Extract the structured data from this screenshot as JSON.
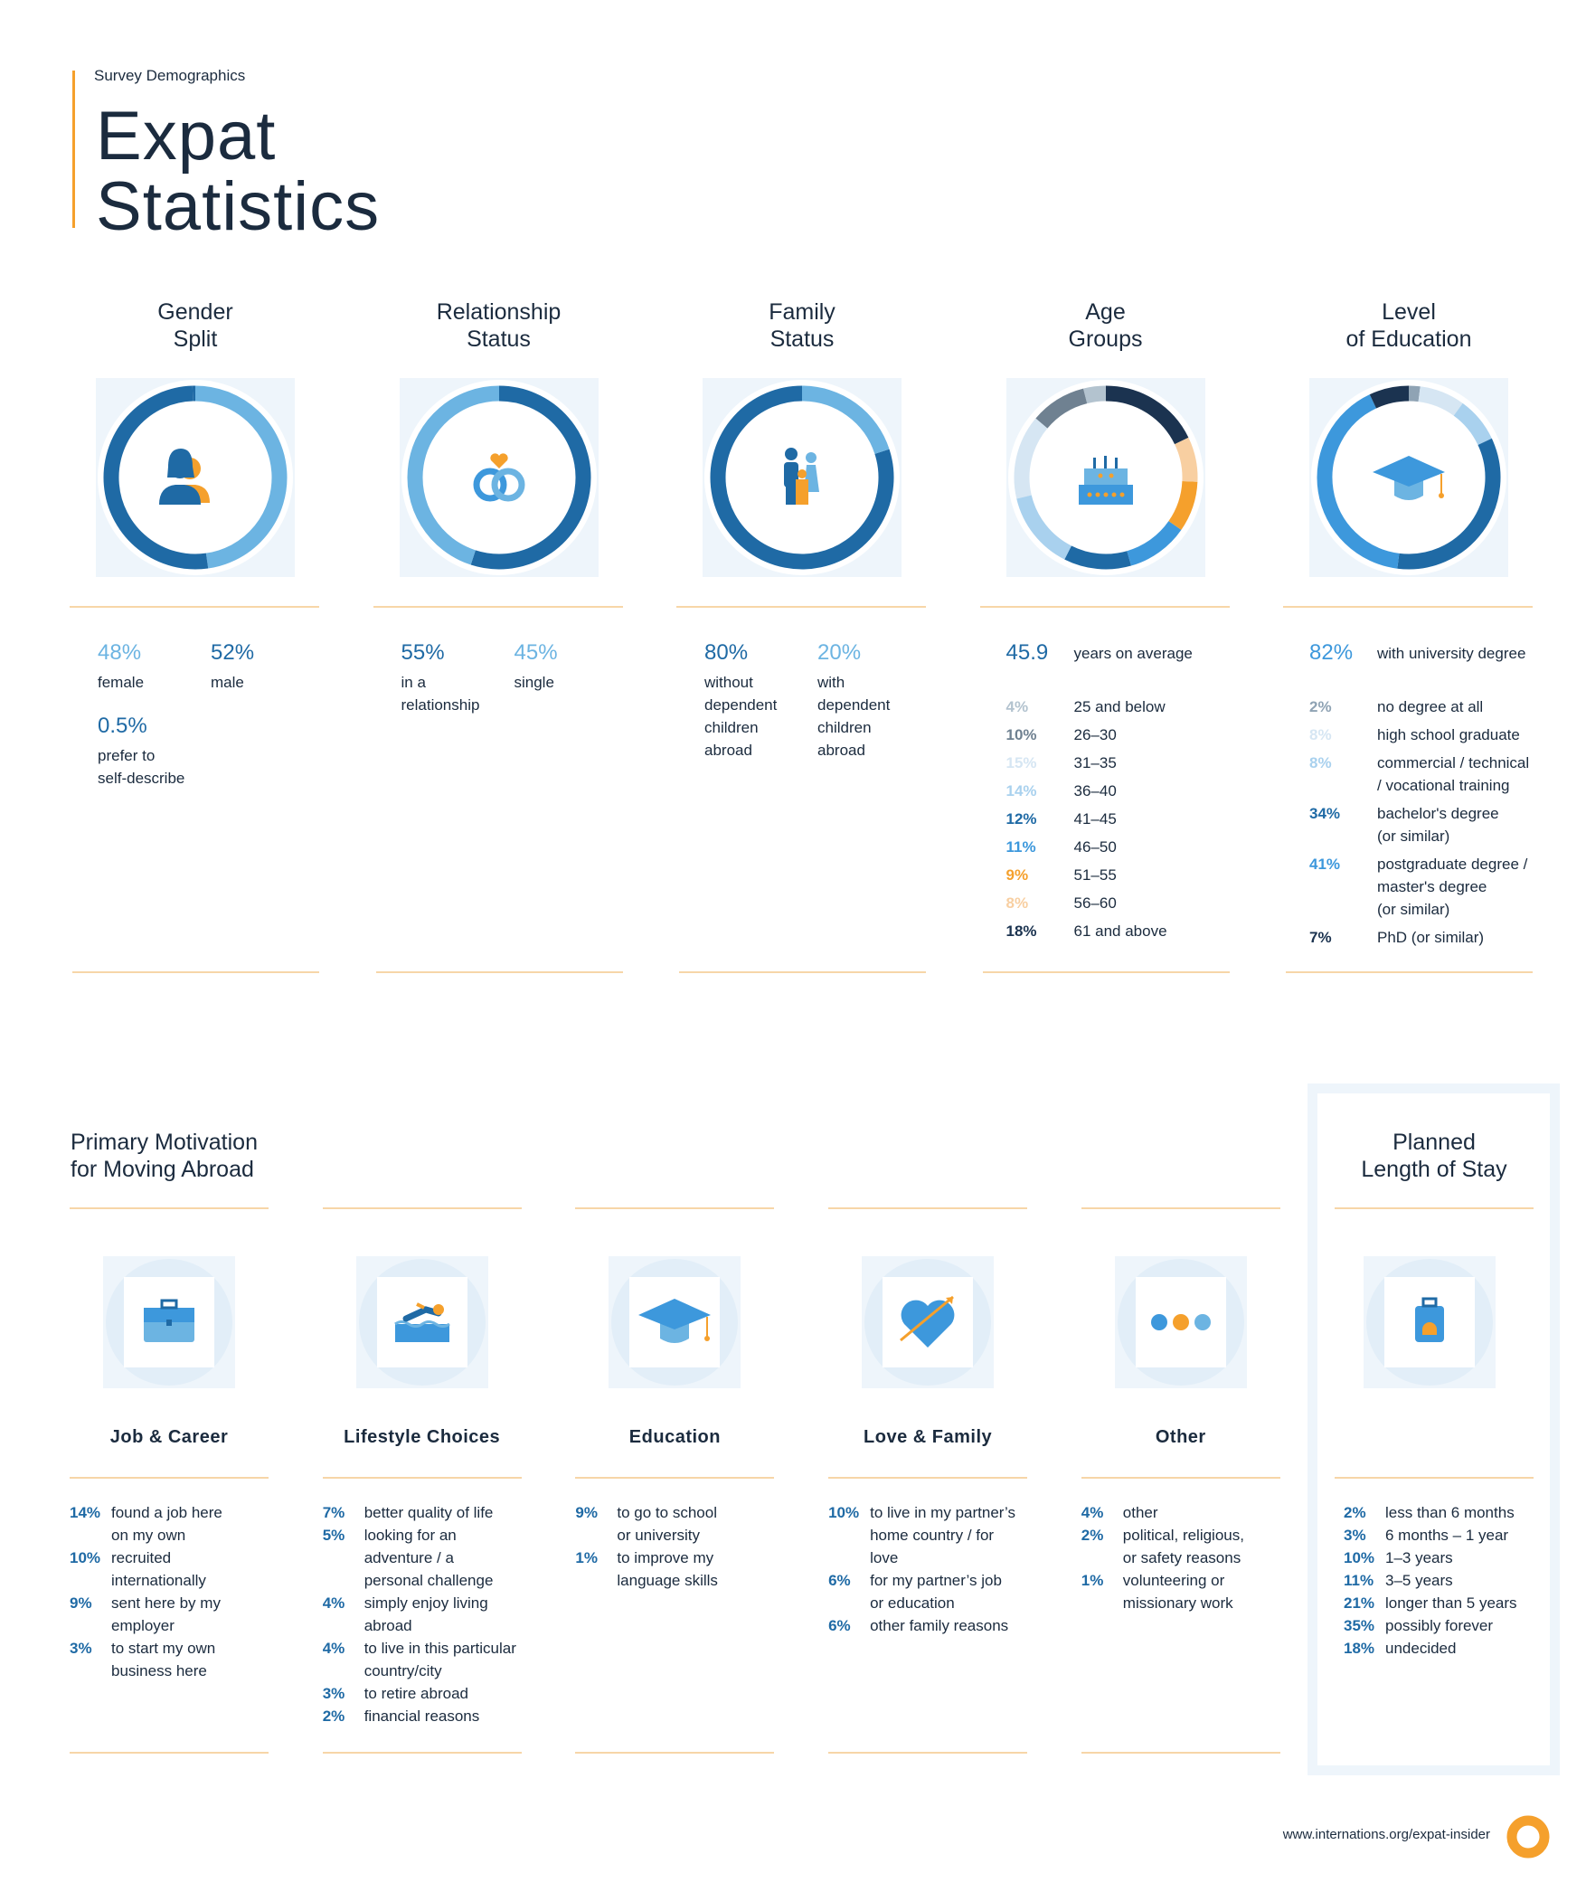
{
  "header": {
    "kicker": "Survey Demographics",
    "title": "Expat\nStatistics"
  },
  "demographics": [
    {
      "type": "donut",
      "title": "Gender\nSplit",
      "clockwise": true,
      "items": [
        {
          "value": 48,
          "value_label": "48%",
          "label": "female",
          "color": "#6cb4e2"
        },
        {
          "value": 52,
          "value_label": "52%",
          "label": "male",
          "color": "#1f6aa5"
        },
        {
          "value": 0.5,
          "value_label": "0.5%",
          "label": "prefer to\nself-describe",
          "color": "#1f6aa5"
        }
      ]
    },
    {
      "type": "donut",
      "title": "Relationship\nStatus",
      "clockwise": true,
      "items": [
        {
          "value": 55,
          "value_label": "55%",
          "label": "in a\nrelationship",
          "color": "#1f6aa5"
        },
        {
          "value": 45,
          "value_label": "45%",
          "label": "single",
          "color": "#6cb4e2"
        }
      ]
    },
    {
      "type": "donut",
      "title": "Family\nStatus",
      "clockwise": false,
      "items": [
        {
          "value": 80,
          "value_label": "80%",
          "label": "without\ndependent\nchildren\nabroad",
          "color": "#1f6aa5"
        },
        {
          "value": 20,
          "value_label": "20%",
          "label": "with\ndependent\nchildren\nabroad",
          "color": "#6cb4e2"
        }
      ]
    },
    {
      "type": "donut",
      "title": "Age\nGroups",
      "clockwise": false,
      "summary": {
        "value": 45.9,
        "label": "years on average",
        "color": "#1f6aa5"
      },
      "items": [
        {
          "value": 4,
          "value_label": "4%",
          "label": "25 and below",
          "color": "#b3c3cf"
        },
        {
          "value": 10,
          "value_label": "10%",
          "label": "26–30",
          "color": "#6f8191"
        },
        {
          "value": 15,
          "value_label": "15%",
          "label": "31–35",
          "color": "#d6e6f3"
        },
        {
          "value": 14,
          "value_label": "14%",
          "label": "36–40",
          "color": "#a9d1ee"
        },
        {
          "value": 12,
          "value_label": "12%",
          "label": "41–45",
          "color": "#1f6aa5"
        },
        {
          "value": 11,
          "value_label": "11%",
          "label": "46–50",
          "color": "#3d98dc"
        },
        {
          "value": 9,
          "value_label": "9%",
          "label": "51–55",
          "color": "#f5a02c"
        },
        {
          "value": 8,
          "value_label": "8%",
          "label": "56–60",
          "color": "#f8cfa1"
        },
        {
          "value": 18,
          "value_label": "18%",
          "label": "61 and above",
          "color": "#1b3350"
        }
      ]
    },
    {
      "type": "donut",
      "title": "Level\nof Education",
      "clockwise": true,
      "summary": {
        "value": 82,
        "value_label": "82%",
        "label": "with university degree",
        "color": "#3d98dc"
      },
      "items": [
        {
          "value": 2,
          "value_label": "2%",
          "label": "no degree at all",
          "color": "#8fa3b4"
        },
        {
          "value": 8,
          "value_label": "8%",
          "label": "high school graduate",
          "color": "#d6e6f3"
        },
        {
          "value": 8,
          "value_label": "8%",
          "label": "commercial / technical\n/ vocational training",
          "color": "#a9d1ee"
        },
        {
          "value": 34,
          "value_label": "34%",
          "label": "bachelor's degree\n(or similar)",
          "color": "#1f6aa5"
        },
        {
          "value": 41,
          "value_label": "41%",
          "label": "postgraduate degree /\nmaster's degree\n(or similar)",
          "color": "#3d98dc"
        },
        {
          "value": 7,
          "value_label": "7%",
          "label": "PhD (or similar)",
          "color": "#1b3350"
        }
      ]
    }
  ],
  "motivation": {
    "title": "Primary Motivation\nfor Moving Abroad",
    "groups": [
      {
        "title": "Job & Career",
        "items": [
          {
            "value": "14%",
            "label": "found a job here\non my own"
          },
          {
            "value": "10%",
            "label": "recruited\ninternationally"
          },
          {
            "value": "9%",
            "label": "sent here by my\nemployer"
          },
          {
            "value": "3%",
            "label": "to start my own\nbusiness here"
          }
        ]
      },
      {
        "title": "Lifestyle Choices",
        "items": [
          {
            "value": "7%",
            "label": "better quality of life"
          },
          {
            "value": "5%",
            "label": "looking for an\nadventure / a\npersonal challenge"
          },
          {
            "value": "4%",
            "label": "simply enjoy living\nabroad"
          },
          {
            "value": "4%",
            "label": "to live in this particular\ncountry/city"
          },
          {
            "value": "3%",
            "label": "to retire abroad"
          },
          {
            "value": "2%",
            "label": "financial reasons"
          }
        ]
      },
      {
        "title": "Education",
        "items": [
          {
            "value": "9%",
            "label": "to go to school\nor university"
          },
          {
            "value": "1%",
            "label": "to improve my\nlanguage skills"
          }
        ]
      },
      {
        "title": "Love & Family",
        "items": [
          {
            "value": "10%",
            "label": "to live in my partner’s\nhome country / for\nlove"
          },
          {
            "value": "6%",
            "label": "for my partner’s job\nor education"
          },
          {
            "value": "6%",
            "label": "other family reasons"
          }
        ]
      },
      {
        "title": "Other",
        "items": [
          {
            "value": "4%",
            "label": "other"
          },
          {
            "value": "2%",
            "label": "political, religious,\nor safety reasons"
          },
          {
            "value": "1%",
            "label": "volunteering or\nmissionary work"
          }
        ]
      }
    ]
  },
  "length_of_stay": {
    "title": "Planned\nLength of Stay",
    "items": [
      {
        "value": "2%",
        "label": "less than 6 months"
      },
      {
        "value": "3%",
        "label": "6 months – 1 year"
      },
      {
        "value": "10%",
        "label": "1–3 years"
      },
      {
        "value": "11%",
        "label": "3–5 years"
      },
      {
        "value": "21%",
        "label": "longer than 5 years"
      },
      {
        "value": "35%",
        "label": "possibly forever"
      },
      {
        "value": "18%",
        "label": "undecided"
      }
    ]
  },
  "footer": {
    "url": "www.internations.org/expat-insider"
  }
}
